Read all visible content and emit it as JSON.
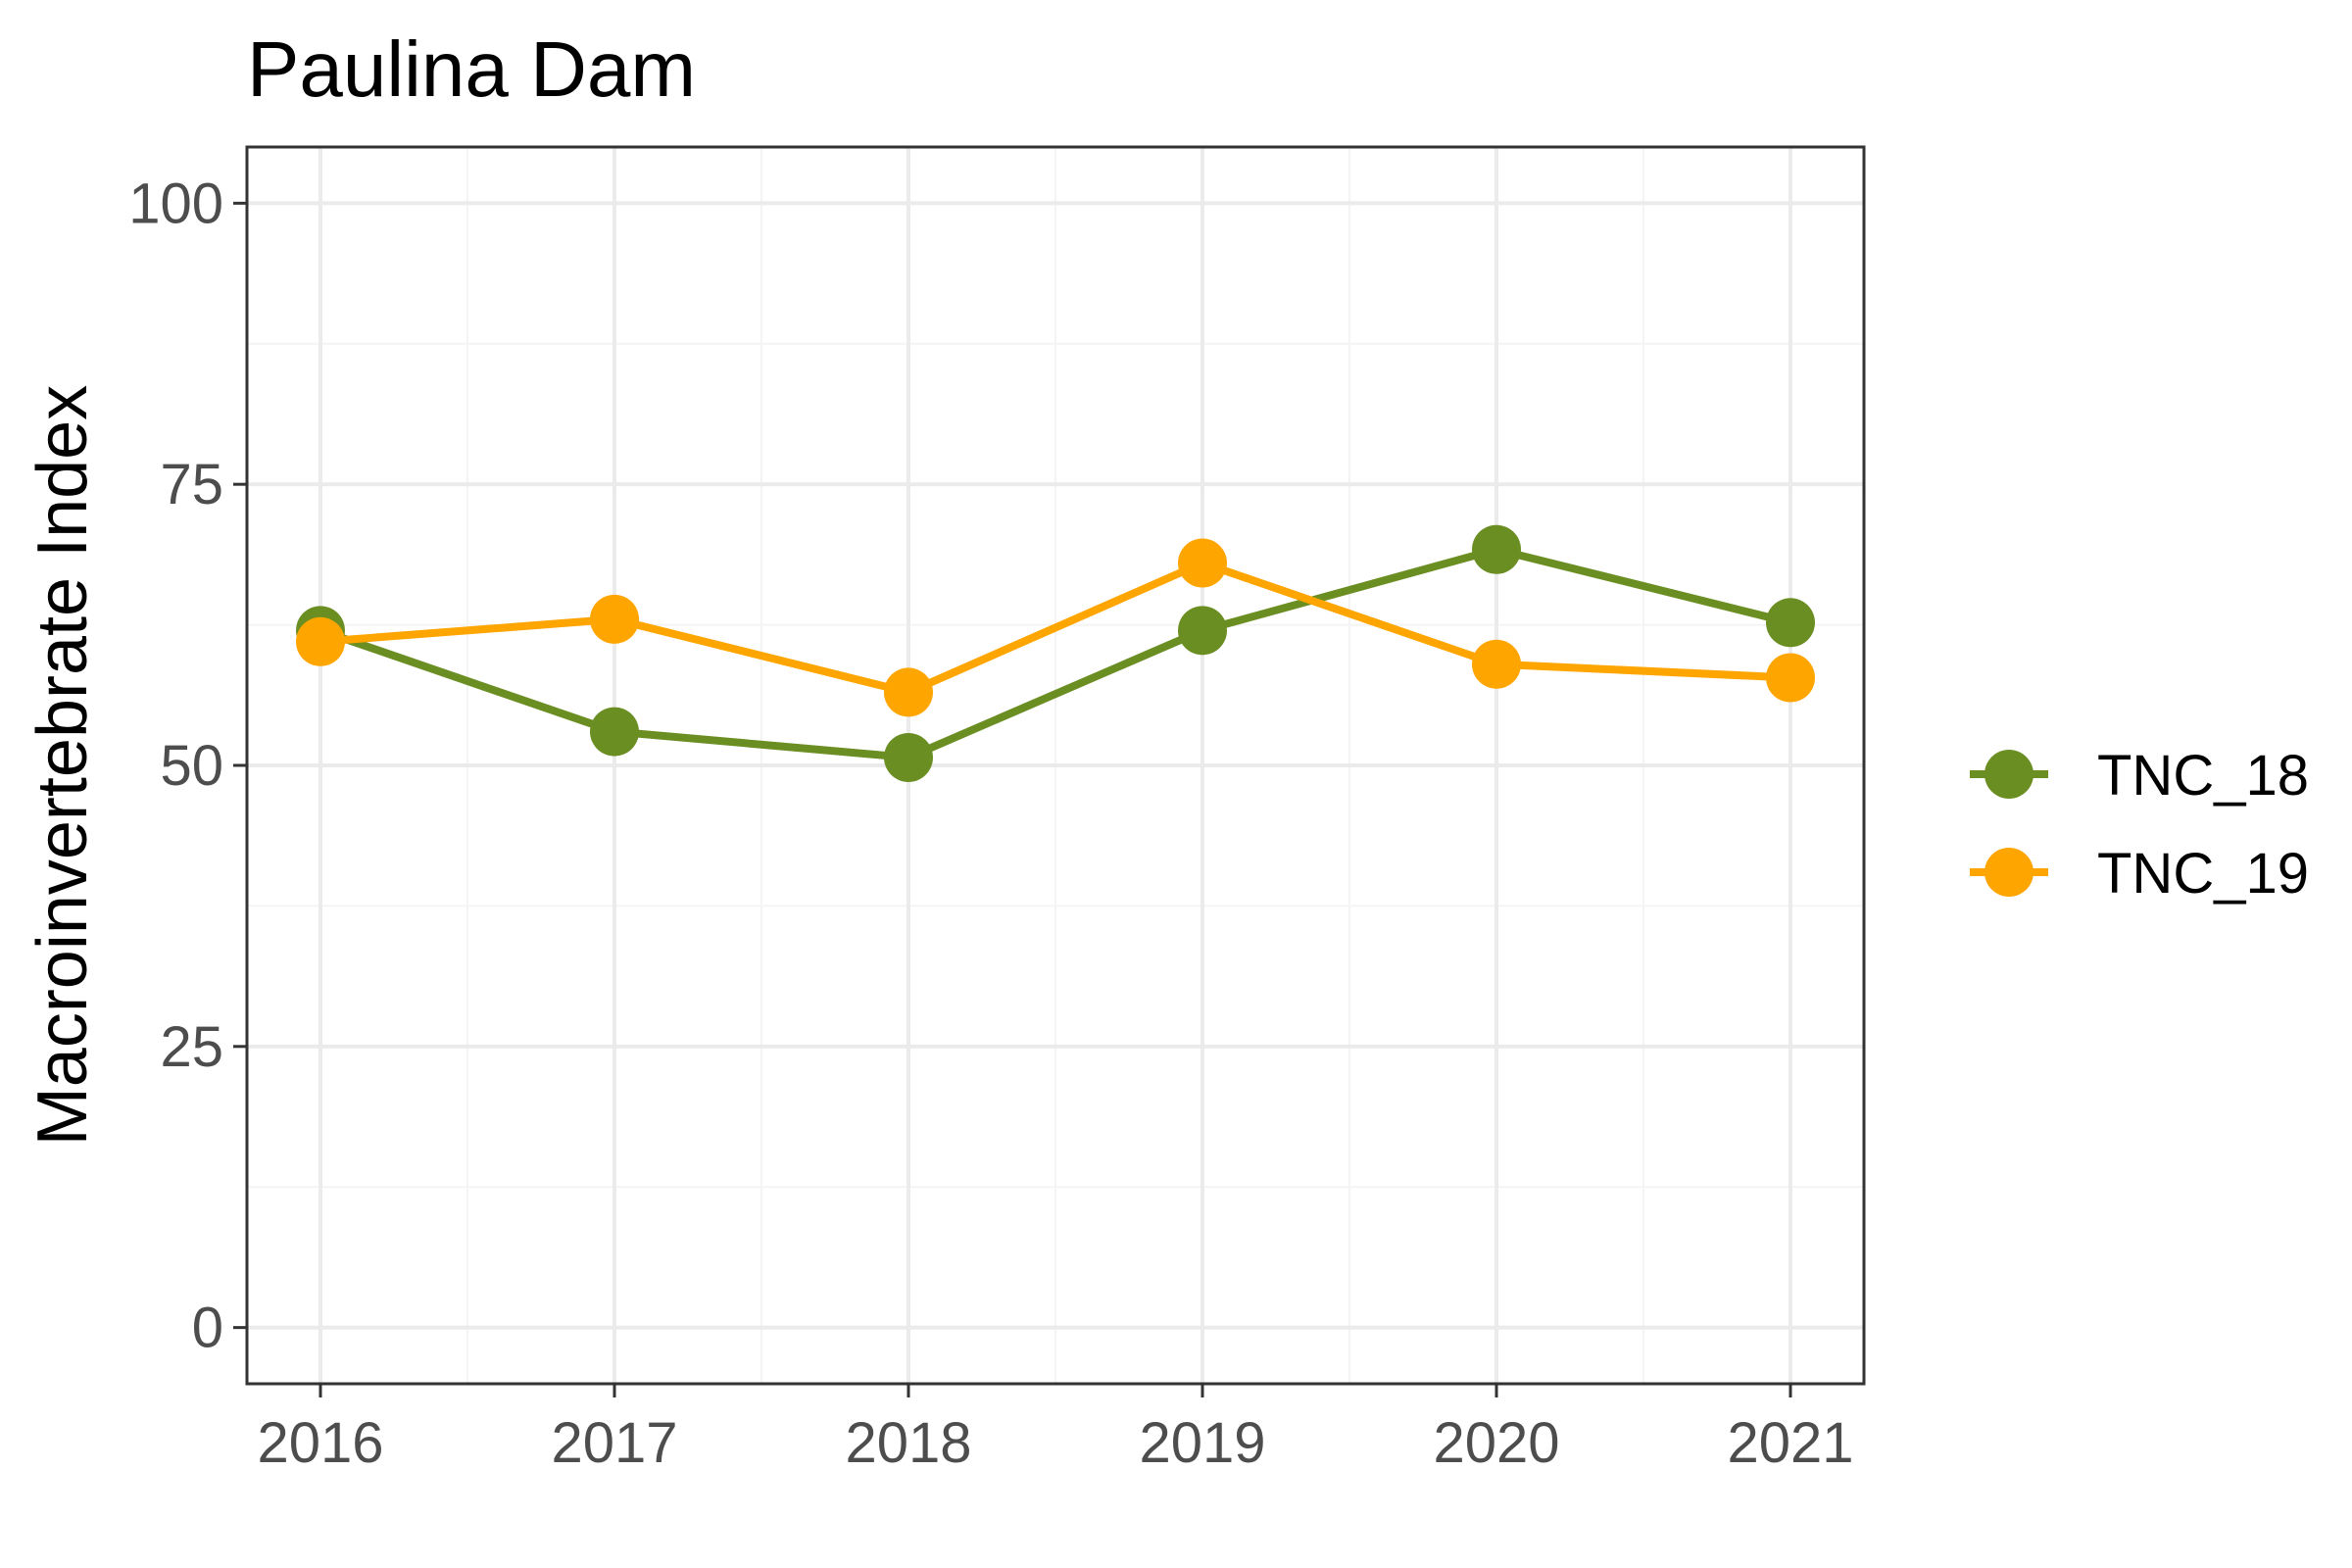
{
  "chart_data": {
    "type": "line",
    "title": "Paulina Dam",
    "xlabel": "",
    "ylabel": "Macroinvertebrate Index",
    "x": [
      2016,
      2017,
      2018,
      2019,
      2020,
      2021
    ],
    "x_tick_labels": [
      "2016",
      "2017",
      "2018",
      "2019",
      "2020",
      "2021"
    ],
    "y_ticks": [
      0,
      25,
      50,
      75,
      100
    ],
    "y_tick_labels": [
      "0",
      "25",
      "50",
      "75",
      "100"
    ],
    "ylim": [
      -5,
      105
    ],
    "xlim": [
      2015.75,
      2021.25
    ],
    "grid": true,
    "legend_position": "right",
    "series": [
      {
        "name": "TNC_18",
        "color": "#6b8e23",
        "values": [
          62.0,
          53.0,
          50.7,
          62.0,
          69.2,
          62.7
        ]
      },
      {
        "name": "TNC_19",
        "color": "#ffa500",
        "values": [
          61.0,
          63.0,
          56.5,
          68.0,
          59.0,
          57.8
        ]
      }
    ]
  }
}
